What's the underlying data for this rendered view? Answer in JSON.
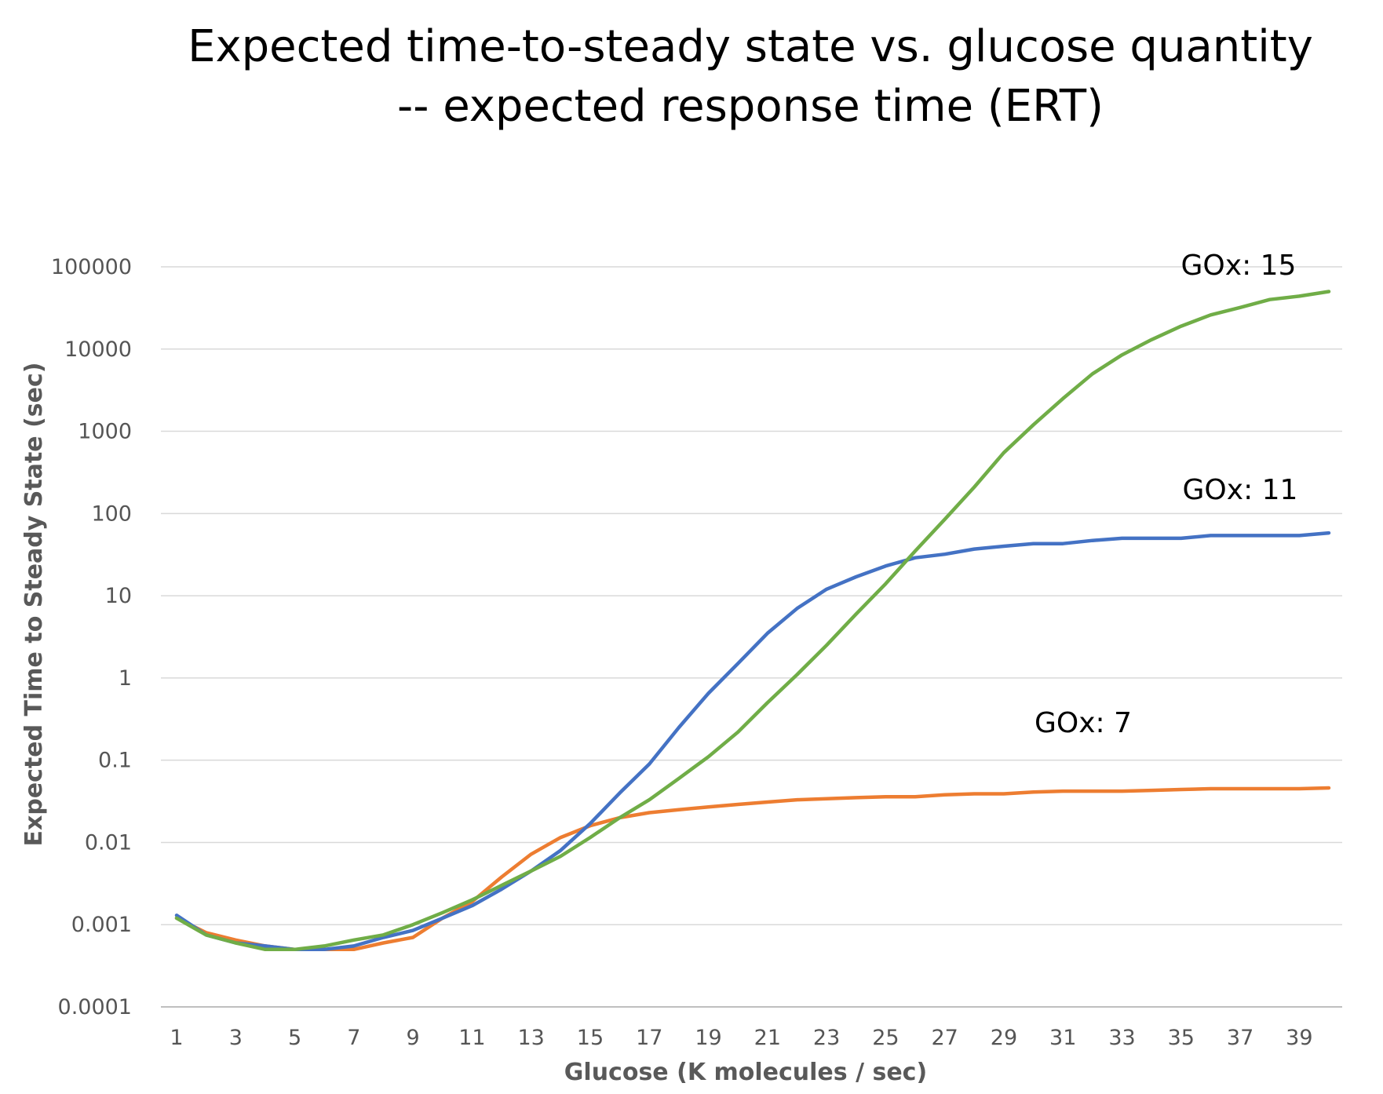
{
  "chart_data": {
    "type": "line",
    "title": "Expected time-to-steady state vs. glucose quantity",
    "subtitle": "-- expected response time (ERT)",
    "xlabel": "Glucose (K molecules / sec)",
    "ylabel": "Expected Time to Steady State (sec)",
    "yscale": "log",
    "ylim": [
      0.0001,
      100000
    ],
    "xlim": [
      1,
      40
    ],
    "grid": true,
    "legend": "none",
    "x_tick_labels": [
      "1",
      "3",
      "5",
      "7",
      "9",
      "11",
      "13",
      "15",
      "17",
      "19",
      "21",
      "23",
      "25",
      "27",
      "29",
      "31",
      "33",
      "35",
      "37",
      "39"
    ],
    "y_tick_labels": [
      "0.0001",
      "0.001",
      "0.01",
      "0.1",
      "1",
      "10",
      "100",
      "1000",
      "10000",
      "100000"
    ],
    "x": [
      1,
      2,
      3,
      4,
      5,
      6,
      7,
      8,
      9,
      10,
      11,
      12,
      13,
      14,
      15,
      16,
      17,
      18,
      19,
      20,
      21,
      22,
      23,
      24,
      25,
      26,
      27,
      28,
      29,
      30,
      31,
      32,
      33,
      34,
      35,
      36,
      37,
      38,
      39,
      40
    ],
    "series": [
      {
        "name": "GOx: 7",
        "color": "#ED7D31",
        "values": [
          0.0012,
          0.0008,
          0.00065,
          0.00055,
          0.0005,
          0.0005,
          0.0005,
          0.0006,
          0.0007,
          0.0012,
          0.0019,
          0.0038,
          0.0072,
          0.0115,
          0.016,
          0.02,
          0.023,
          0.025,
          0.027,
          0.029,
          0.031,
          0.033,
          0.034,
          0.035,
          0.036,
          0.036,
          0.038,
          0.039,
          0.039,
          0.041,
          0.042,
          0.042,
          0.042,
          0.043,
          0.044,
          0.045,
          0.045,
          0.045,
          0.045,
          0.046
        ]
      },
      {
        "name": "GOx: 11",
        "color": "#4472C4",
        "values": [
          0.0013,
          0.00075,
          0.0006,
          0.00055,
          0.0005,
          0.0005,
          0.00055,
          0.0007,
          0.00085,
          0.0012,
          0.0017,
          0.0027,
          0.0045,
          0.008,
          0.017,
          0.04,
          0.09,
          0.25,
          0.65,
          1.5,
          3.5,
          7,
          12,
          17,
          23,
          29,
          32,
          37,
          40,
          43,
          43,
          47,
          50,
          50,
          50,
          54,
          54,
          54,
          54,
          58
        ]
      },
      {
        "name": "GOx: 15",
        "color": "#70AD47",
        "values": [
          0.0012,
          0.00075,
          0.0006,
          0.0005,
          0.0005,
          0.00055,
          0.00065,
          0.00075,
          0.001,
          0.0014,
          0.002,
          0.003,
          0.0045,
          0.0068,
          0.0115,
          0.02,
          0.033,
          0.06,
          0.11,
          0.22,
          0.5,
          1.1,
          2.5,
          6,
          14,
          35,
          85,
          210,
          550,
          1200,
          2500,
          5000,
          8500,
          13000,
          19000,
          26000,
          32000,
          40000,
          44000,
          50000
        ]
      }
    ]
  }
}
